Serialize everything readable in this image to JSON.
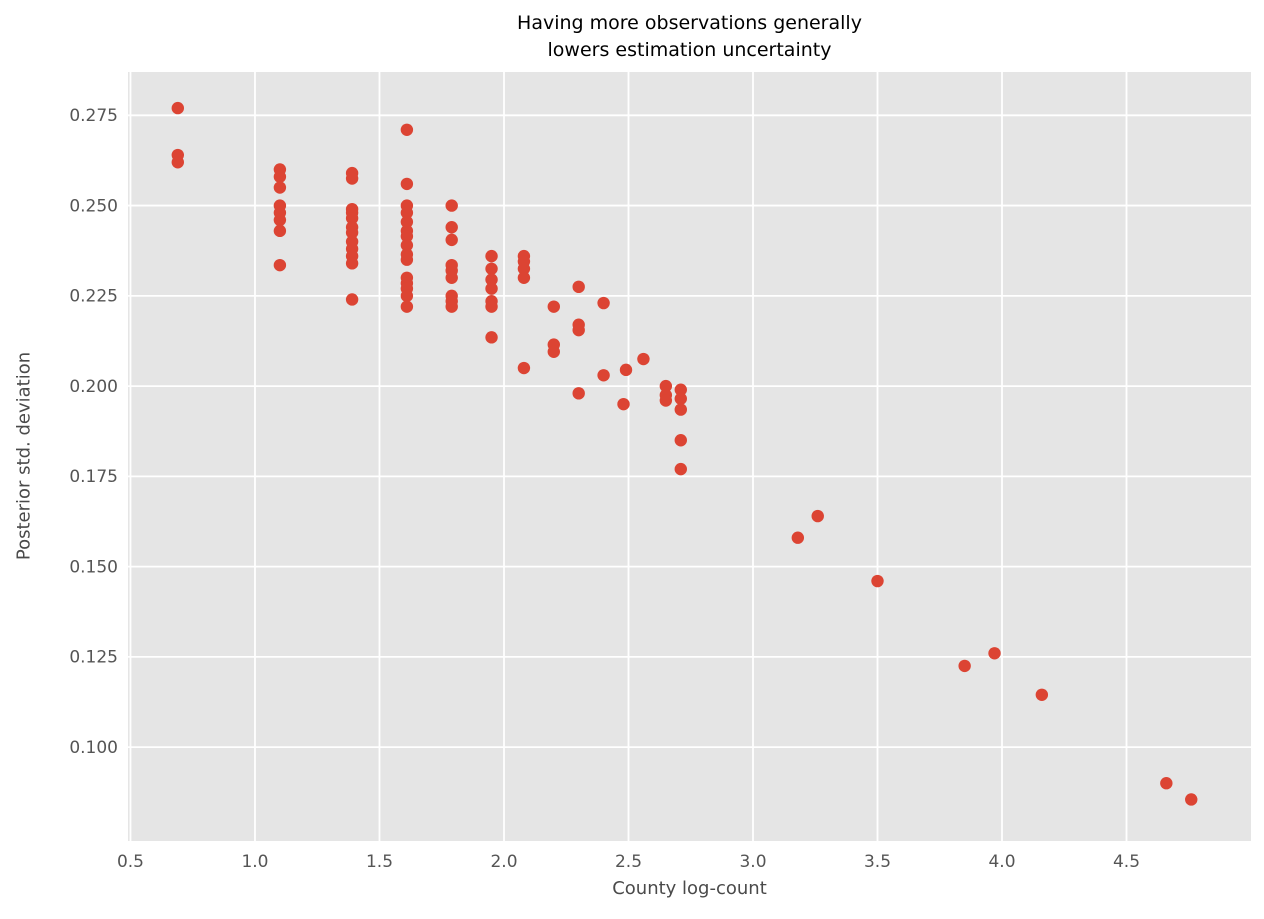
{
  "chart_data": {
    "type": "scatter",
    "title_lines": [
      "Having more observations generally",
      "lowers estimation uncertainty"
    ],
    "xlabel": "County log-count",
    "ylabel": "Posterior std. deviation",
    "xlim": [
      0.49,
      5.0
    ],
    "ylim": [
      0.074,
      0.287
    ],
    "grid": true,
    "legend": "none",
    "xtick_values": [
      0.5,
      1.0,
      1.5,
      2.0,
      2.5,
      3.0,
      3.5,
      4.0,
      4.5
    ],
    "xtick_labels": [
      "0.5",
      "1.0",
      "1.5",
      "2.0",
      "2.5",
      "3.0",
      "3.5",
      "4.0",
      "4.5"
    ],
    "ytick_values": [
      0.1,
      0.125,
      0.15,
      0.175,
      0.2,
      0.225,
      0.25,
      0.275
    ],
    "ytick_labels": [
      "0.100",
      "0.125",
      "0.150",
      "0.175",
      "0.200",
      "0.225",
      "0.250",
      "0.275"
    ],
    "style": {
      "plot_bg": "#E5E5E5",
      "grid_color": "#FFFFFF",
      "marker_color": "#DC4433",
      "tick_label_color": "#555555",
      "marker_radius": 6.2
    },
    "points": [
      [
        0.69,
        0.277
      ],
      [
        0.69,
        0.264
      ],
      [
        0.69,
        0.262
      ],
      [
        1.1,
        0.26
      ],
      [
        1.1,
        0.258
      ],
      [
        1.1,
        0.255
      ],
      [
        1.1,
        0.25
      ],
      [
        1.1,
        0.248
      ],
      [
        1.1,
        0.246
      ],
      [
        1.1,
        0.243
      ],
      [
        1.1,
        0.2335
      ],
      [
        1.39,
        0.259
      ],
      [
        1.39,
        0.2575
      ],
      [
        1.39,
        0.249
      ],
      [
        1.39,
        0.248
      ],
      [
        1.39,
        0.2465
      ],
      [
        1.39,
        0.244
      ],
      [
        1.39,
        0.2425
      ],
      [
        1.39,
        0.24
      ],
      [
        1.39,
        0.238
      ],
      [
        1.39,
        0.236
      ],
      [
        1.39,
        0.234
      ],
      [
        1.39,
        0.224
      ],
      [
        1.61,
        0.271
      ],
      [
        1.61,
        0.256
      ],
      [
        1.61,
        0.25
      ],
      [
        1.61,
        0.248
      ],
      [
        1.61,
        0.2455
      ],
      [
        1.61,
        0.243
      ],
      [
        1.61,
        0.2415
      ],
      [
        1.61,
        0.239
      ],
      [
        1.61,
        0.2365
      ],
      [
        1.61,
        0.235
      ],
      [
        1.61,
        0.23
      ],
      [
        1.61,
        0.2285
      ],
      [
        1.61,
        0.227
      ],
      [
        1.61,
        0.225
      ],
      [
        1.61,
        0.222
      ],
      [
        1.79,
        0.25
      ],
      [
        1.79,
        0.244
      ],
      [
        1.79,
        0.2405
      ],
      [
        1.79,
        0.2335
      ],
      [
        1.79,
        0.232
      ],
      [
        1.79,
        0.23
      ],
      [
        1.79,
        0.225
      ],
      [
        1.79,
        0.2235
      ],
      [
        1.79,
        0.222
      ],
      [
        1.95,
        0.236
      ],
      [
        1.95,
        0.2325
      ],
      [
        1.95,
        0.2295
      ],
      [
        1.95,
        0.227
      ],
      [
        1.95,
        0.2235
      ],
      [
        1.95,
        0.222
      ],
      [
        1.95,
        0.2135
      ],
      [
        2.08,
        0.236
      ],
      [
        2.08,
        0.2345
      ],
      [
        2.08,
        0.2325
      ],
      [
        2.08,
        0.23
      ],
      [
        2.08,
        0.205
      ],
      [
        2.2,
        0.222
      ],
      [
        2.2,
        0.2115
      ],
      [
        2.2,
        0.2095
      ],
      [
        2.3,
        0.2275
      ],
      [
        2.3,
        0.217
      ],
      [
        2.3,
        0.2155
      ],
      [
        2.3,
        0.198
      ],
      [
        2.4,
        0.223
      ],
      [
        2.4,
        0.203
      ],
      [
        2.49,
        0.2045
      ],
      [
        2.48,
        0.195
      ],
      [
        2.56,
        0.2075
      ],
      [
        2.65,
        0.2
      ],
      [
        2.65,
        0.1975
      ],
      [
        2.65,
        0.196
      ],
      [
        2.71,
        0.199
      ],
      [
        2.71,
        0.1965
      ],
      [
        2.71,
        0.1935
      ],
      [
        2.71,
        0.185
      ],
      [
        2.71,
        0.177
      ],
      [
        3.18,
        0.158
      ],
      [
        3.26,
        0.164
      ],
      [
        3.5,
        0.146
      ],
      [
        3.85,
        0.1225
      ],
      [
        3.97,
        0.126
      ],
      [
        4.16,
        0.1145
      ],
      [
        4.66,
        0.09
      ],
      [
        4.76,
        0.0855
      ]
    ]
  }
}
